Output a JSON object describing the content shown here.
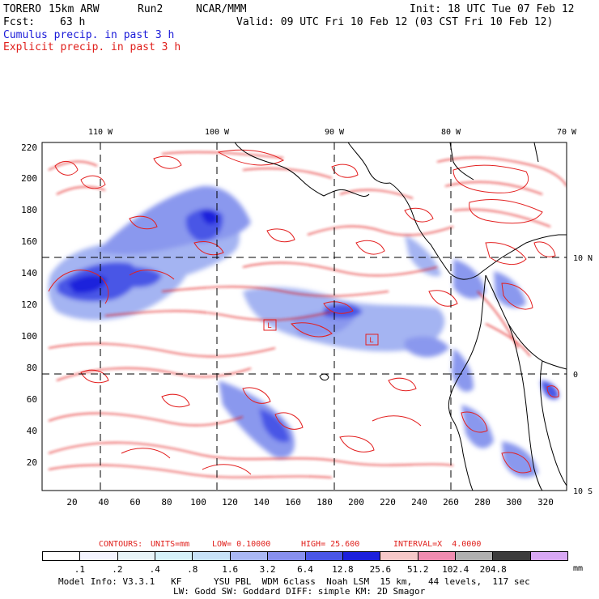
{
  "header": {
    "model": "TORERO",
    "resolution": "15km ARW",
    "run": "Run2",
    "org": "NCAR/MMM",
    "init": "Init: 18 UTC Tue 07 Feb 12",
    "fcst_label": "Fcst:",
    "fcst_value": "63 h",
    "valid": "Valid: 09 UTC Fri 10 Feb 12 (03 CST Fri 10 Feb 12)",
    "cumulus_title": "Cumulus precip. in past 3 h",
    "explicit_title": "Explicit precip. in past 3 h"
  },
  "colors": {
    "cumulus_title": "#1a1ad8",
    "explicit_title": "#e0201c",
    "contour": "#e32020"
  },
  "map": {
    "top_lon_labels": [
      "110 W",
      "100 W",
      "90 W",
      "80 W",
      "70 W"
    ],
    "left_y_ticks": [
      "220",
      "200",
      "180",
      "160",
      "140",
      "120",
      "100",
      "80",
      "60",
      "40",
      "20"
    ],
    "bottom_x_ticks": [
      "20",
      "40",
      "60",
      "80",
      "100",
      "120",
      "140",
      "160",
      "180",
      "200",
      "220",
      "240",
      "260",
      "280",
      "300",
      "320"
    ],
    "right_lat_labels": [
      "10 N",
      "0",
      "10 S"
    ],
    "markers": [
      "L",
      "L"
    ]
  },
  "contour_info": {
    "label": "CONTOURS:",
    "units": "UNITS=mm",
    "low": "LOW= 0.10000",
    "high": "HIGH= 25.600",
    "interval": "INTERVAL=X  4.0000"
  },
  "colorbar": {
    "labels": [
      ".1",
      ".2",
      ".4",
      ".8",
      "1.6",
      "3.2",
      "6.4",
      "12.8",
      "25.6",
      "51.2",
      "102.4",
      "204.8"
    ],
    "unit": "mm",
    "colors": [
      "#ffffff",
      "#f4f4ff",
      "#e8f4f8",
      "#d6f2fa",
      "#c8e2f8",
      "#aab8f4",
      "#8890ee",
      "#4a56e6",
      "#1c20dc",
      "#f6c8c8",
      "#f08cb0",
      "#b0b0b0",
      "#3c3c3c",
      "#d8a8f4"
    ]
  },
  "footer": {
    "line1": "Model Info: V3.3.1   KF      YSU PBL  WDM 6class  Noah LSM  15 km,   44 levels,  117 sec",
    "line2": "LW: Godd SW: Goddard DIFF: simple KM: 2D Smagor"
  }
}
